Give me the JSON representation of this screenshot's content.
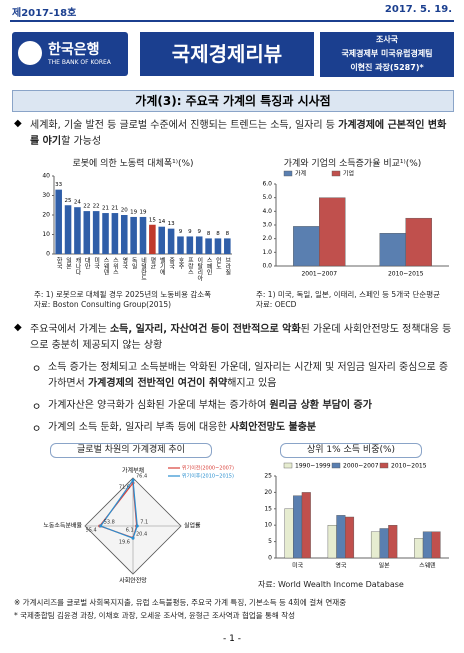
{
  "header": {
    "issue": "제2017-18호",
    "date": "2017. 5. 19.",
    "logo": "한국은행",
    "logo_sub": "THE BANK OF KOREA",
    "banner": "국제경제리뷰",
    "dept": [
      "조사국",
      "국제경제부 미국유럽경제팀",
      "이현진 과장(5287)*"
    ]
  },
  "title": "가계(3): 주요국 가계의 특징과 시사점",
  "bullet_mark": "◆",
  "sub_mark": "ㅇ",
  "paragraph1": [
    {
      "t": "세계화, 기술 발전 등 글로벌 수준에서 진행되는 트렌드는 소득, 일자리 등 ",
      "b": false
    },
    {
      "t": "가계경제에 근본적인 변화를 야기",
      "b": true
    },
    {
      "t": "할 가능성",
      "b": false
    }
  ],
  "paragraph2": [
    {
      "t": "주요국에서 가계는 ",
      "b": false
    },
    {
      "t": "소득, 일자리, 자산여건 등이 전반적으로 악화",
      "b": true
    },
    {
      "t": "된 가운데 사회안전망도 정책대응 등으로 충분히 제공되지 않는 상황",
      "b": false
    }
  ],
  "subs": [
    [
      {
        "t": "소득 증가는 정체되고 소득분배는 악화된 가운데, 일자리는 시간제 및 저임금 일자리 중심으로 증가하면서 ",
        "b": false
      },
      {
        "t": "가계경제의 전반적인 여건이 취약",
        "b": true
      },
      {
        "t": "해지고 있음",
        "b": false
      }
    ],
    [
      {
        "t": "가계자산은 양극화가 심화된 가운데 부채는 증가하여 ",
        "b": false
      },
      {
        "t": "원리금 상환 부담이 증가",
        "b": true
      }
    ],
    [
      {
        "t": "가계의 소득 둔화, 일자리 부족 등에 대응한 ",
        "b": false
      },
      {
        "t": "사회안전망도 불충분",
        "b": true
      }
    ]
  ],
  "chart_data": [
    {
      "type": "bar",
      "title": "로봇에 의한 노동력 대체폭¹⁾(%)",
      "categories": [
        "한국",
        "일본",
        "캐나다",
        "대만",
        "미국",
        "스웨덴",
        "스위스",
        "영국",
        "독일",
        "네덜란드",
        "평균",
        "벨기에",
        "중국",
        "호주",
        "프랑스",
        "이탈리아",
        "스페인",
        "인도",
        "브라질"
      ],
      "values": [
        33,
        25,
        24,
        22,
        22,
        21,
        21,
        20,
        19,
        19,
        15,
        14,
        13,
        9,
        9,
        9,
        8,
        8,
        8
      ],
      "colors": [
        "#2f5ea8",
        "#2f5ea8",
        "#2f5ea8",
        "#2f5ea8",
        "#2f5ea8",
        "#2f5ea8",
        "#2f5ea8",
        "#2f5ea8",
        "#2f5ea8",
        "#2f5ea8",
        "#c0392b",
        "#2f5ea8",
        "#2f5ea8",
        "#2f5ea8",
        "#2f5ea8",
        "#2f5ea8",
        "#2f5ea8",
        "#2f5ea8",
        "#2f5ea8"
      ],
      "ylim": [
        0,
        40
      ],
      "yticks": [
        0,
        10,
        20,
        30,
        40
      ],
      "notes": [
        "주: 1) 로봇으로 대체될 경우 2025년의 노동비용 감소폭",
        "자료: Boston Consulting Group(2015)"
      ]
    },
    {
      "type": "bar",
      "title": "가계와 기업의 소득증가율 비교¹⁾(%)",
      "categories": [
        "2001~2007",
        "2010~2015"
      ],
      "series": [
        {
          "name": "가계",
          "color": "#5a7fb0",
          "values": [
            2.9,
            2.4
          ]
        },
        {
          "name": "기업",
          "color": "#c0504d",
          "values": [
            5.0,
            3.5
          ]
        }
      ],
      "ylim": [
        0,
        6
      ],
      "yticks": [
        {
          "value": 0,
          "label": "0.0"
        },
        {
          "value": 1,
          "label": "1.0"
        },
        {
          "value": 2,
          "label": "2.0"
        },
        {
          "value": 3,
          "label": "3.0"
        },
        {
          "value": 4,
          "label": "4.0"
        },
        {
          "value": 5,
          "label": "5.0"
        },
        {
          "value": 6,
          "label": "6.0"
        }
      ],
      "notes": [
        "주: 1) 미국, 독일, 일본, 이태리, 스페인 등 5개국 단순평균",
        "자료: OECD"
      ]
    },
    {
      "type": "radar",
      "title": "글로벌 차원의 가계경제 추이",
      "axes": [
        "가계부채",
        "실업률",
        "사회안전망",
        "노동소득분배율"
      ],
      "rlim": [
        0,
        80
      ],
      "series": [
        {
          "name": "위기이전(2000~2007)",
          "color": "#d9413a",
          "values": [
            71.6,
            6.1,
            19.6,
            55.4
          ]
        },
        {
          "name": "위기이후(2010~2015)",
          "color": "#2a8fd0",
          "values": [
            76.4,
            7.1,
            20.4,
            53.8
          ]
        }
      ]
    },
    {
      "type": "bar",
      "title": "상위 1% 소득 비중(%)",
      "categories": [
        "미국",
        "영국",
        "일본",
        "스웨덴"
      ],
      "series": [
        {
          "name": "1990~1999",
          "color": "#e6ecd0",
          "values": [
            15,
            10,
            8,
            6
          ]
        },
        {
          "name": "2000~2007",
          "color": "#5a7fb0",
          "values": [
            19,
            13,
            9,
            8
          ]
        },
        {
          "name": "2010~2015",
          "color": "#c0504d",
          "values": [
            20,
            12.5,
            10,
            8
          ]
        }
      ],
      "ylim": [
        0,
        25
      ],
      "yticks": [
        0,
        5,
        10,
        15,
        20,
        25
      ],
      "notes": [
        "자료: World Wealth Income Database"
      ]
    }
  ],
  "footnotes": [
    "※ 가계시리즈를 글로벌 사회복지지출, 유럽 소득불평등, 주요국 가계 특징, 기본소득 등 4회에 걸쳐 연재중",
    "* 국제종합팀 김윤경 과장, 이채호 과장, 오세윤 조사역, 윤형근 조사역과 협업을 통해 작성"
  ],
  "page": "- 1 -"
}
